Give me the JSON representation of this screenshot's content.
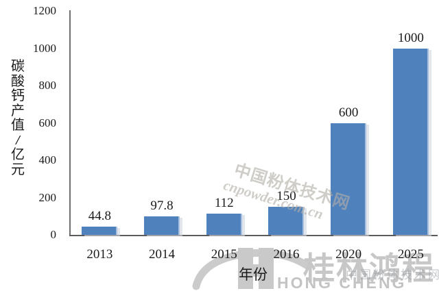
{
  "chart_data": {
    "type": "bar",
    "categories": [
      "2013",
      "2014",
      "2015",
      "2016",
      "2020",
      "2025"
    ],
    "values": [
      44.8,
      97.8,
      112,
      150,
      600,
      1000
    ],
    "value_labels": [
      "44.8",
      "97.8",
      "112",
      "150",
      "600",
      "1000"
    ],
    "xlabel": "年份",
    "ylabel": "碳酸钙产值/亿元",
    "ylabel_chars": [
      "碳",
      "酸",
      "钙",
      "产",
      "值",
      "/",
      "亿",
      "元"
    ],
    "yticks": [
      0,
      200,
      400,
      600,
      800,
      1000,
      1200
    ],
    "ylim": [
      0,
      1200
    ],
    "grid": false,
    "legend": "none",
    "bar_color": "#4f81bd",
    "bar_edge_color": "#a6c0de",
    "axis_color": "#5a5a5a"
  },
  "watermark": {
    "diagonal_line1": "中国粉体技术网",
    "diagonal_line2": "cnpowder.com.cn",
    "corner_text": "中国粉体技术网",
    "color": "#b3afa8"
  },
  "logo": {
    "chinese": "桂林鸿程",
    "latin": "HONG CHENG",
    "color": "#c9c9c9"
  }
}
